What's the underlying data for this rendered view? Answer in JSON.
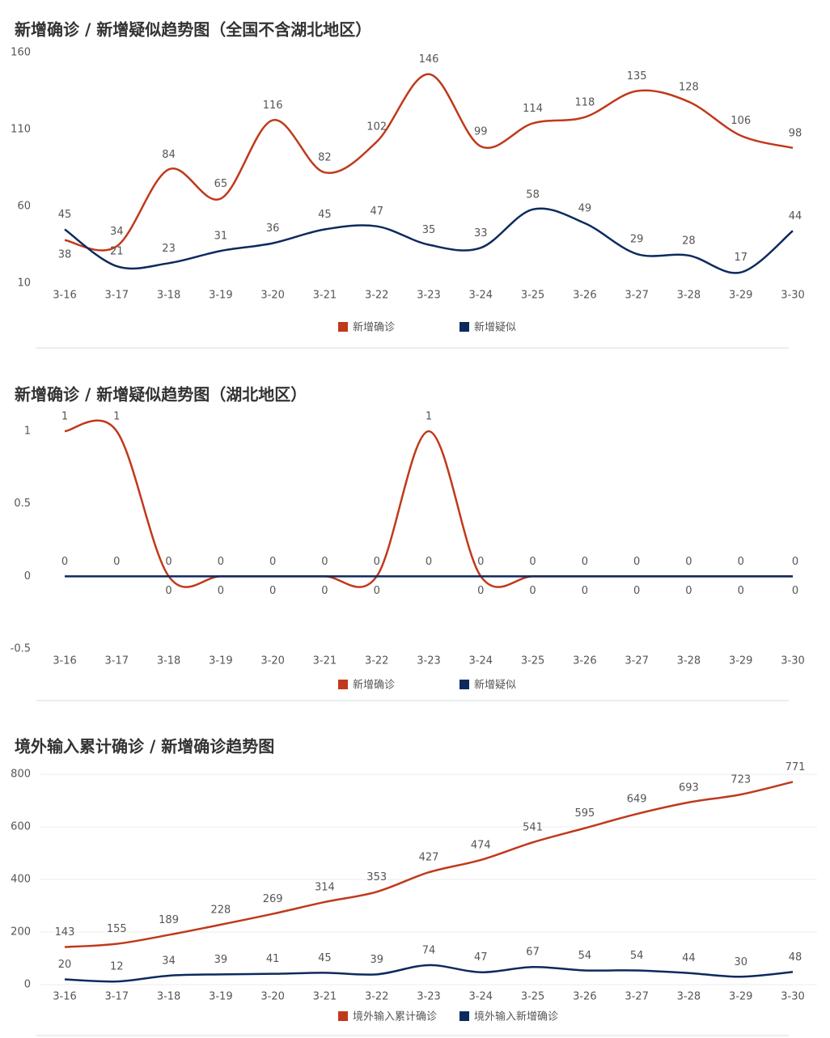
{
  "chart_data": [
    {
      "type": "line",
      "title": "新增确诊 / 新增疑似趋势图（全国不含湖北地区）",
      "categories": [
        "3-16",
        "3-17",
        "3-18",
        "3-19",
        "3-20",
        "3-21",
        "3-22",
        "3-23",
        "3-24",
        "3-25",
        "3-26",
        "3-27",
        "3-28",
        "3-29",
        "3-30"
      ],
      "series": [
        {
          "name": "新增确诊",
          "color": "#c0391b",
          "values": [
            38,
            34,
            84,
            65,
            116,
            82,
            102,
            146,
            99,
            114,
            118,
            135,
            128,
            106,
            98
          ]
        },
        {
          "name": "新增疑似",
          "color": "#0d2a5e",
          "values": [
            45,
            21,
            23,
            31,
            36,
            45,
            47,
            35,
            33,
            58,
            49,
            29,
            28,
            17,
            44
          ]
        }
      ],
      "ylim": [
        10,
        160
      ],
      "yticks": [
        10,
        60,
        110,
        160
      ],
      "grid": false,
      "legend": "bottom"
    },
    {
      "type": "line",
      "title": "新增确诊 / 新增疑似趋势图（湖北地区）",
      "categories": [
        "3-16",
        "3-17",
        "3-18",
        "3-19",
        "3-20",
        "3-21",
        "3-22",
        "3-23",
        "3-24",
        "3-25",
        "3-26",
        "3-27",
        "3-28",
        "3-29",
        "3-30"
      ],
      "series": [
        {
          "name": "新增确诊",
          "color": "#c0391b",
          "values": [
            1,
            1,
            0,
            0,
            0,
            0,
            0,
            1,
            0,
            0,
            0,
            0,
            0,
            0,
            0
          ]
        },
        {
          "name": "新增疑似",
          "color": "#0d2a5e",
          "values": [
            0,
            0,
            0,
            0,
            0,
            0,
            0,
            0,
            0,
            0,
            0,
            0,
            0,
            0,
            0
          ]
        }
      ],
      "ylim": [
        -0.5,
        1
      ],
      "yticks": [
        -0.5,
        0,
        0.5,
        1
      ],
      "grid": false,
      "legend": "bottom"
    },
    {
      "type": "line",
      "title": "境外输入累计确诊 / 新增确诊趋势图",
      "categories": [
        "3-16",
        "3-17",
        "3-18",
        "3-19",
        "3-20",
        "3-21",
        "3-22",
        "3-23",
        "3-24",
        "3-25",
        "3-26",
        "3-27",
        "3-28",
        "3-29",
        "3-30"
      ],
      "series": [
        {
          "name": "境外输入累计确诊",
          "color": "#c0391b",
          "values": [
            143,
            155,
            189,
            228,
            269,
            314,
            353,
            427,
            474,
            541,
            595,
            649,
            693,
            723,
            771
          ]
        },
        {
          "name": "境外输入新增确诊",
          "color": "#0d2a5e",
          "values": [
            20,
            12,
            34,
            39,
            41,
            45,
            39,
            74,
            47,
            67,
            54,
            54,
            44,
            30,
            48
          ]
        }
      ],
      "ylim": [
        0,
        800
      ],
      "yticks": [
        0,
        200,
        400,
        600,
        800
      ],
      "grid": true,
      "legend": "bottom"
    }
  ]
}
